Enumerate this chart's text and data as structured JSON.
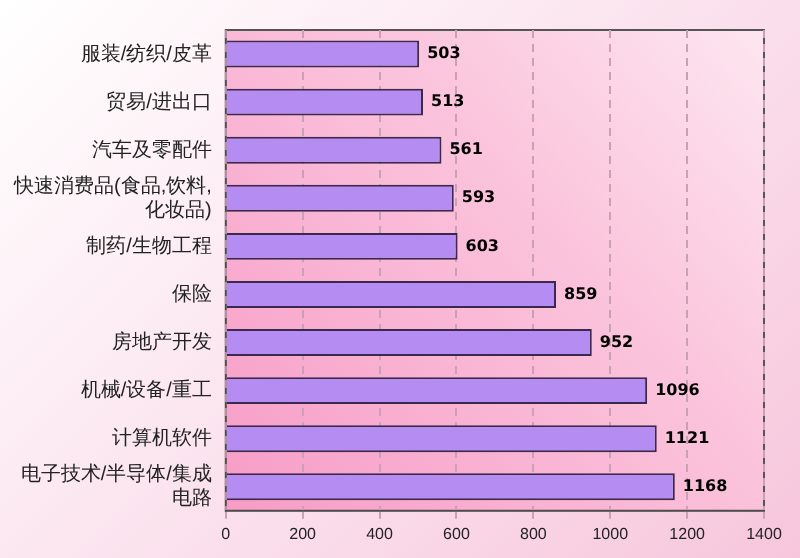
{
  "chart_data": {
    "type": "bar",
    "orientation": "horizontal",
    "categories": [
      "服装/纺织/皮革",
      "贸易/进出口",
      "汽车及零配件",
      "快速消费品(食品,饮料,化妆品)",
      "制药/生物工程",
      "保险",
      "房地产开发",
      "机械/设备/重工",
      "计算机软件",
      "电子技术/半导体/集成电路"
    ],
    "values": [
      503,
      513,
      561,
      593,
      603,
      859,
      952,
      1096,
      1121,
      1168
    ],
    "color": "#b48cf2",
    "xlim": [
      0,
      1400
    ],
    "xticks": [
      0,
      200,
      400,
      600,
      800,
      1000,
      1200,
      1400
    ],
    "grid": "x",
    "data_labels": true,
    "legend": false
  }
}
